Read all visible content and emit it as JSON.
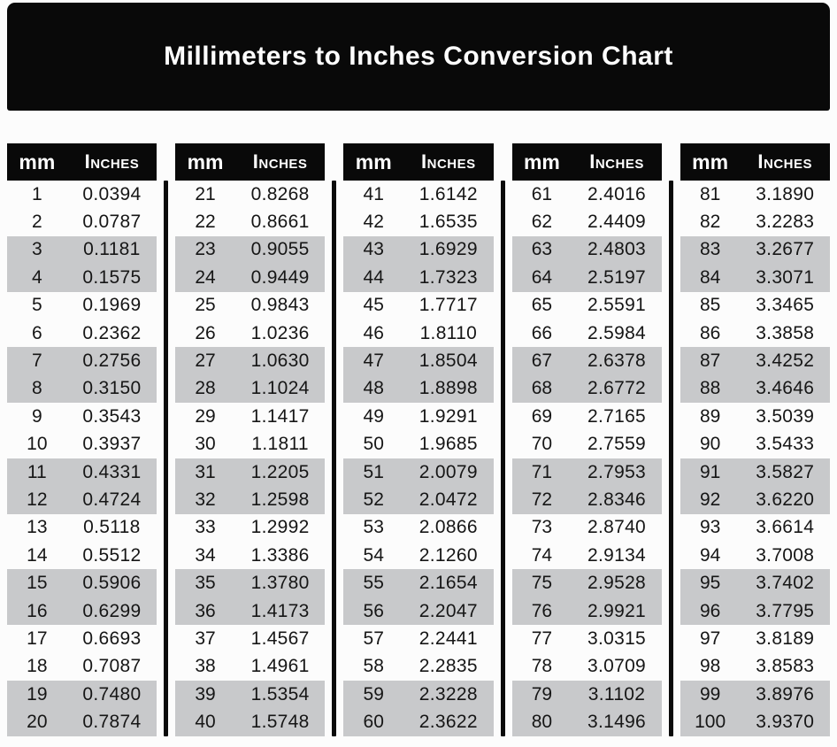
{
  "title": "Millimeters to Inches Conversion Chart",
  "colors": {
    "banner_bg": "#090909",
    "header_bg": "#090909",
    "row_shade": "#c8c9cb",
    "text": "#161616",
    "header_text": "#ffffff"
  },
  "chart_data": {
    "type": "table",
    "title": "Millimeters to Inches Conversion Chart",
    "column_headers": [
      "mm",
      "Inches"
    ],
    "layout": "5 side-by-side blocks, rows shaded in alternating pairs (2 white, 2 gray)",
    "blocks": [
      {
        "rows": [
          [
            "1",
            "0.0394"
          ],
          [
            "2",
            "0.0787"
          ],
          [
            "3",
            "0.1181"
          ],
          [
            "4",
            "0.1575"
          ],
          [
            "5",
            "0.1969"
          ],
          [
            "6",
            "0.2362"
          ],
          [
            "7",
            "0.2756"
          ],
          [
            "8",
            "0.3150"
          ],
          [
            "9",
            "0.3543"
          ],
          [
            "10",
            "0.3937"
          ],
          [
            "11",
            "0.4331"
          ],
          [
            "12",
            "0.4724"
          ],
          [
            "13",
            "0.5118"
          ],
          [
            "14",
            "0.5512"
          ],
          [
            "15",
            "0.5906"
          ],
          [
            "16",
            "0.6299"
          ],
          [
            "17",
            "0.6693"
          ],
          [
            "18",
            "0.7087"
          ],
          [
            "19",
            "0.7480"
          ],
          [
            "20",
            "0.7874"
          ]
        ]
      },
      {
        "rows": [
          [
            "21",
            "0.8268"
          ],
          [
            "22",
            "0.8661"
          ],
          [
            "23",
            "0.9055"
          ],
          [
            "24",
            "0.9449"
          ],
          [
            "25",
            "0.9843"
          ],
          [
            "26",
            "1.0236"
          ],
          [
            "27",
            "1.0630"
          ],
          [
            "28",
            "1.1024"
          ],
          [
            "29",
            "1.1417"
          ],
          [
            "30",
            "1.1811"
          ],
          [
            "31",
            "1.2205"
          ],
          [
            "32",
            "1.2598"
          ],
          [
            "33",
            "1.2992"
          ],
          [
            "34",
            "1.3386"
          ],
          [
            "35",
            "1.3780"
          ],
          [
            "36",
            "1.4173"
          ],
          [
            "37",
            "1.4567"
          ],
          [
            "38",
            "1.4961"
          ],
          [
            "39",
            "1.5354"
          ],
          [
            "40",
            "1.5748"
          ]
        ]
      },
      {
        "rows": [
          [
            "41",
            "1.6142"
          ],
          [
            "42",
            "1.6535"
          ],
          [
            "43",
            "1.6929"
          ],
          [
            "44",
            "1.7323"
          ],
          [
            "45",
            "1.7717"
          ],
          [
            "46",
            "1.8110"
          ],
          [
            "47",
            "1.8504"
          ],
          [
            "48",
            "1.8898"
          ],
          [
            "49",
            "1.9291"
          ],
          [
            "50",
            "1.9685"
          ],
          [
            "51",
            "2.0079"
          ],
          [
            "52",
            "2.0472"
          ],
          [
            "53",
            "2.0866"
          ],
          [
            "54",
            "2.1260"
          ],
          [
            "55",
            "2.1654"
          ],
          [
            "56",
            "2.2047"
          ],
          [
            "57",
            "2.2441"
          ],
          [
            "58",
            "2.2835"
          ],
          [
            "59",
            "2.3228"
          ],
          [
            "60",
            "2.3622"
          ]
        ]
      },
      {
        "rows": [
          [
            "61",
            "2.4016"
          ],
          [
            "62",
            "2.4409"
          ],
          [
            "63",
            "2.4803"
          ],
          [
            "64",
            "2.5197"
          ],
          [
            "65",
            "2.5591"
          ],
          [
            "66",
            "2.5984"
          ],
          [
            "67",
            "2.6378"
          ],
          [
            "68",
            "2.6772"
          ],
          [
            "69",
            "2.7165"
          ],
          [
            "70",
            "2.7559"
          ],
          [
            "71",
            "2.7953"
          ],
          [
            "72",
            "2.8346"
          ],
          [
            "73",
            "2.8740"
          ],
          [
            "74",
            "2.9134"
          ],
          [
            "75",
            "2.9528"
          ],
          [
            "76",
            "2.9921"
          ],
          [
            "77",
            "3.0315"
          ],
          [
            "78",
            "3.0709"
          ],
          [
            "79",
            "3.1102"
          ],
          [
            "80",
            "3.1496"
          ]
        ]
      },
      {
        "rows": [
          [
            "81",
            "3.1890"
          ],
          [
            "82",
            "3.2283"
          ],
          [
            "83",
            "3.2677"
          ],
          [
            "84",
            "3.3071"
          ],
          [
            "85",
            "3.3465"
          ],
          [
            "86",
            "3.3858"
          ],
          [
            "87",
            "3.4252"
          ],
          [
            "88",
            "3.4646"
          ],
          [
            "89",
            "3.5039"
          ],
          [
            "90",
            "3.5433"
          ],
          [
            "91",
            "3.5827"
          ],
          [
            "92",
            "3.6220"
          ],
          [
            "93",
            "3.6614"
          ],
          [
            "94",
            "3.7008"
          ],
          [
            "95",
            "3.7402"
          ],
          [
            "96",
            "3.7795"
          ],
          [
            "97",
            "3.8189"
          ],
          [
            "98",
            "3.8583"
          ],
          [
            "99",
            "3.8976"
          ],
          [
            "100",
            "3.9370"
          ]
        ]
      }
    ]
  }
}
